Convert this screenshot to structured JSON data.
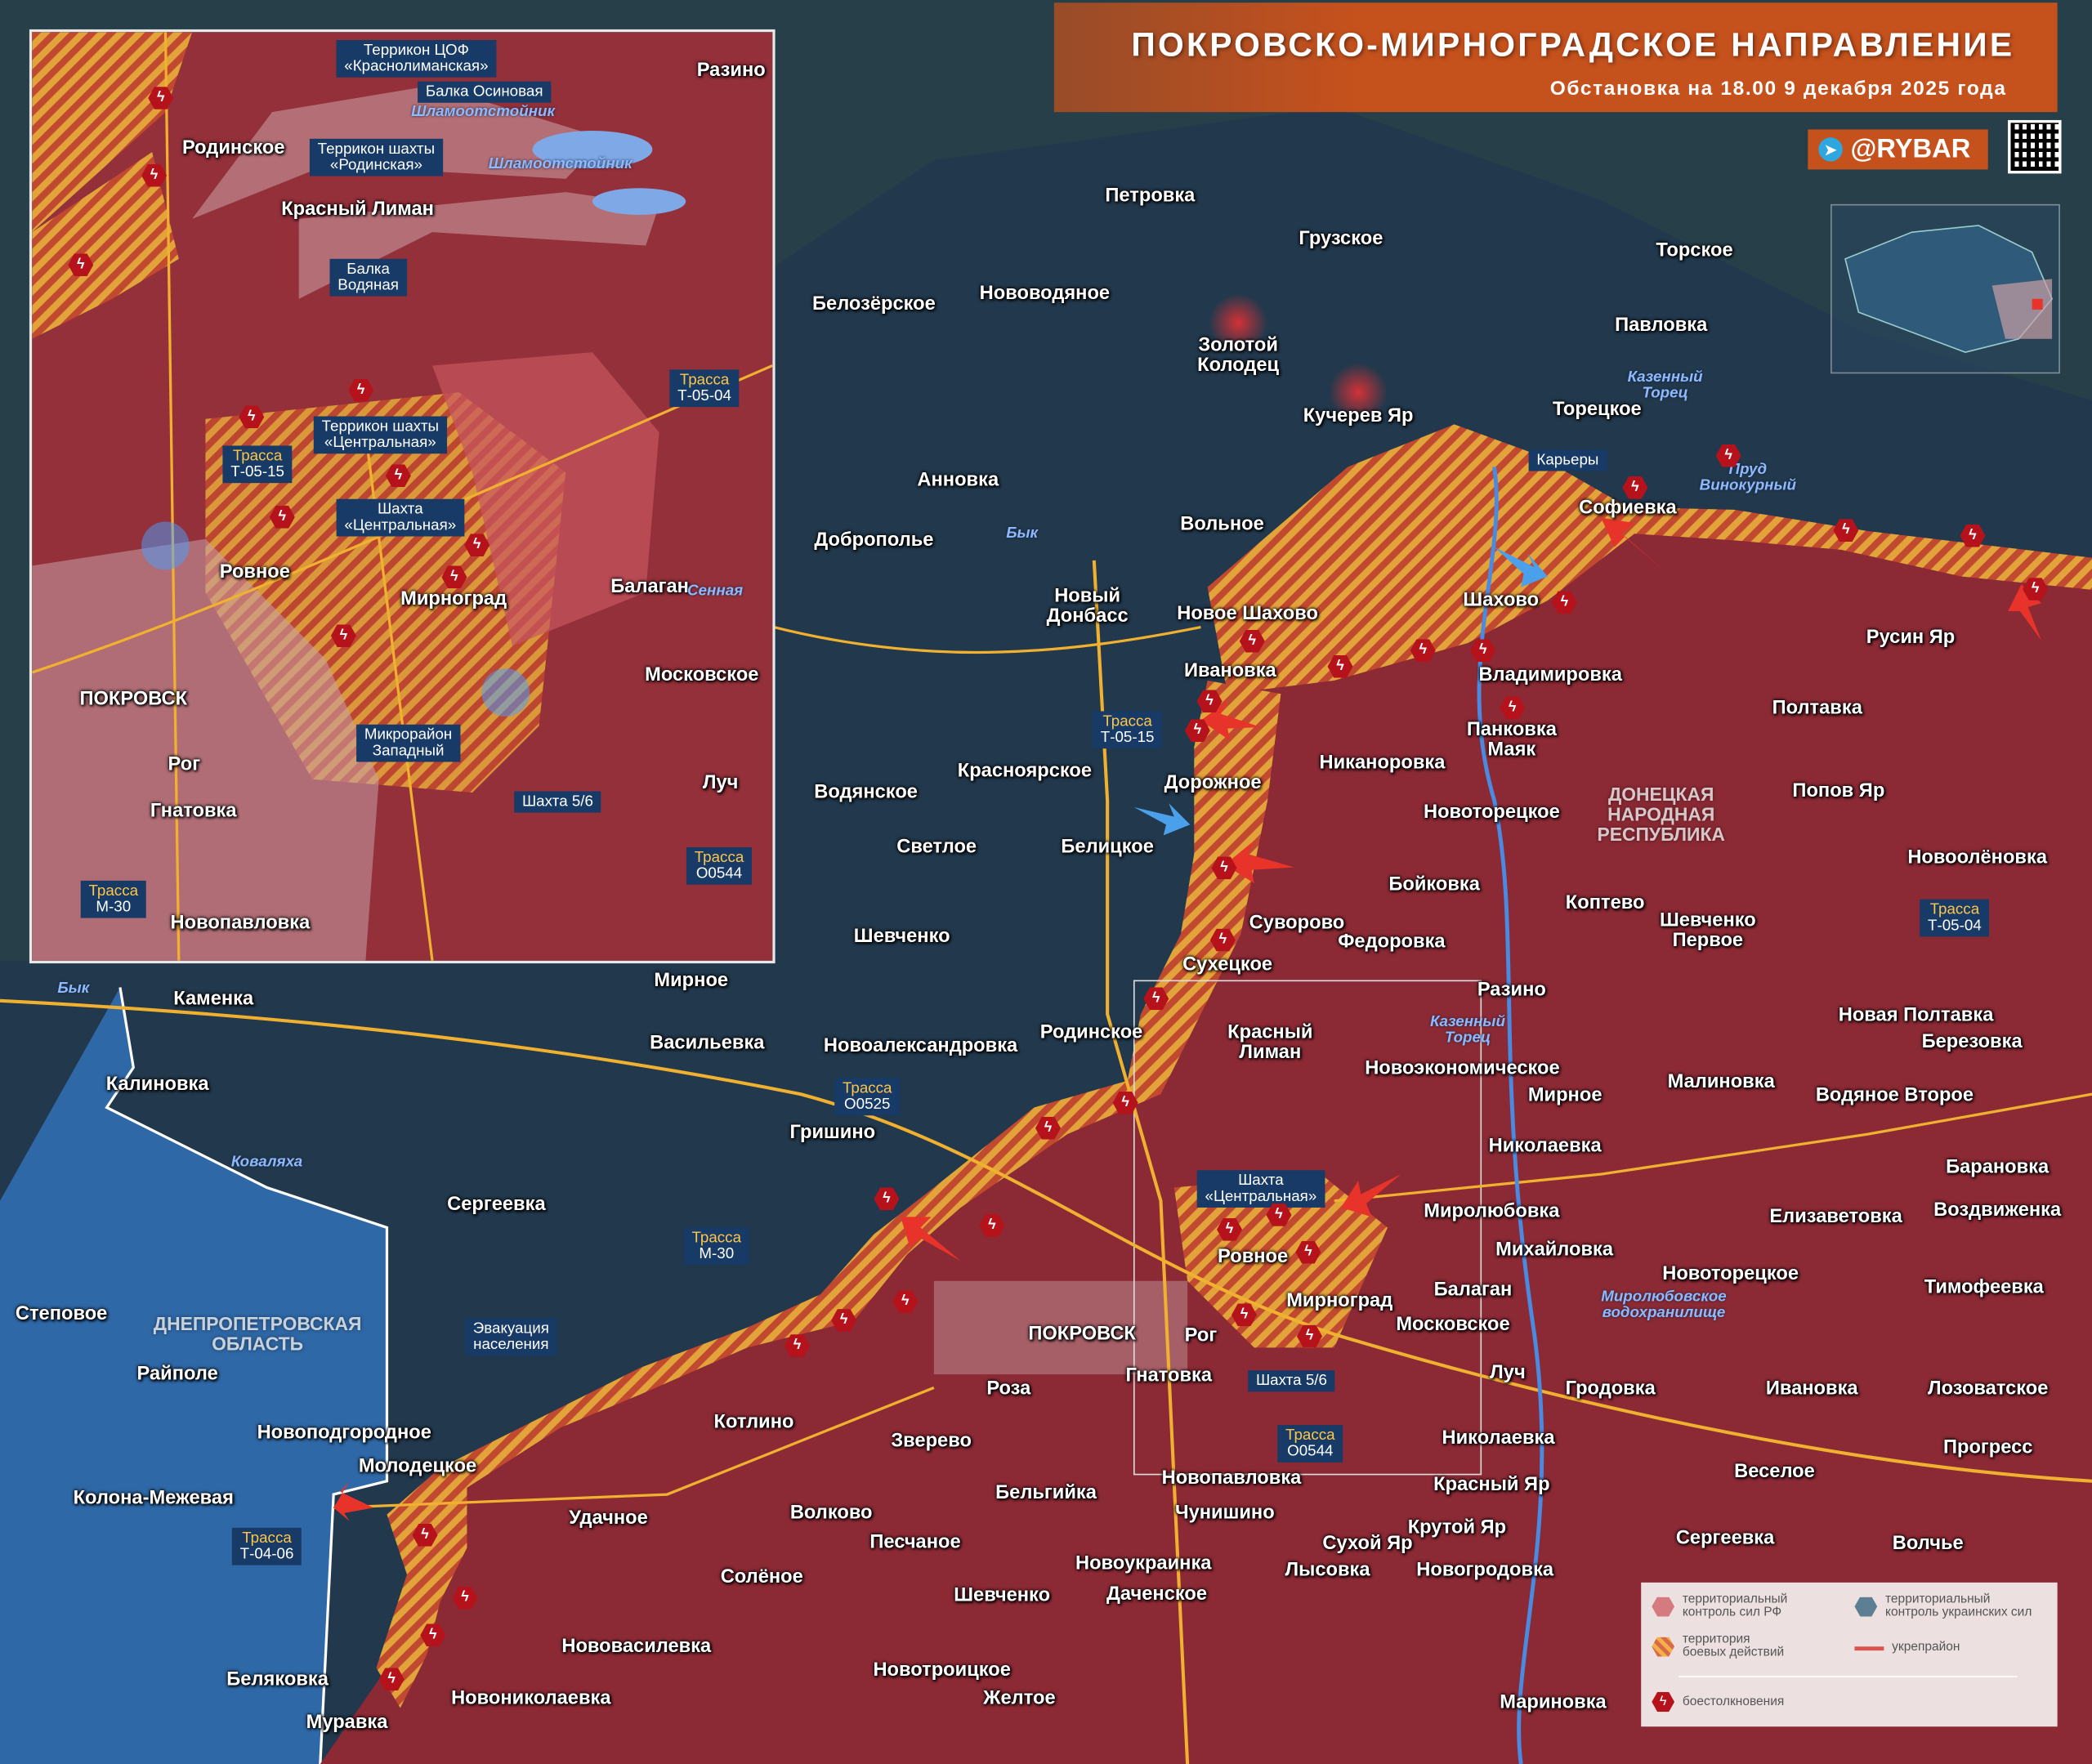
{
  "header": {
    "title": "ПОКРОВСКО-МИРНОГРАДСКОЕ НАПРАВЛЕНИЕ",
    "subtitle": "Обстановка на 18.00 9 декабря 2025 года",
    "brand": "@RYBAR",
    "brand_icon": "telegram-icon",
    "qr_icon": "qr-code-icon"
  },
  "colors": {
    "russian_control": "#8b2a35",
    "ukrainian_control": "#1f3a52",
    "combat_zone_stripe_a": "#e2a33a",
    "combat_zone_stripe_b": "#c0492f",
    "clash": "#b5121b",
    "header_bg": "#c5511d",
    "road": "#f0b030",
    "river": "#4a8ae0"
  },
  "legend": {
    "ru_control": "территориальный\nконтроль сил РФ",
    "ua_control": "территориальный\nконтроль украинских сил",
    "combat": "территория\nбоевых действий",
    "fortified": "укрепрайон",
    "clashes": "боестолкновения"
  },
  "main": {
    "settlements": [
      "Петровка",
      "Грузское",
      "Торское",
      "Белозёрское",
      "Нововодяное",
      "Золотой\nКолодец",
      "Павловка",
      "Кучерев Яр",
      "Торецкое",
      "Анновка",
      "Софиевка",
      "Доброполье",
      "Вольное",
      "Новый\nДонбасс",
      "Новое Шахово",
      "Шахово",
      "Русин Яр",
      "Ивановка",
      "Владимировка",
      "Панковка\nМаяк",
      "Полтавка",
      "Никаноровка",
      "Дорожное",
      "Красноярское",
      "Водянское",
      "Попов Яр",
      "Новоторецкое",
      "Светлое",
      "Белицкое",
      "Бойковка",
      "Новоолёновка",
      "Коптево",
      "Шевченко\nПервое",
      "Суворово",
      "Шевченко",
      "Федоровка",
      "Сухецкое",
      "Мирное",
      "Разино",
      "Каменка",
      "Новая Полтавка",
      "Родинское",
      "Красный\nЛиман",
      "Березовка",
      "Васильевка",
      "Новоалександровка",
      "Новоэкономическое",
      "Калиновка",
      "Мирное",
      "Малиновка",
      "Водяное Второе",
      "Гришино",
      "Николаевка",
      "Барановка",
      "Сергеевка",
      "Миролюбовка",
      "Елизаветовка",
      "Воздвиженка",
      "Михайловка",
      "Ровное",
      "Степовое",
      "Балаган",
      "Новоторецкое",
      "Тимофеевка",
      "Мирноград",
      "Московское",
      "ПОКРОВСК",
      "Рог",
      "Гнатовка",
      "Луч",
      "Райполе",
      "Роза",
      "Гродовка",
      "Ивановка",
      "Лозоватское",
      "Котлино",
      "Новоподгородное",
      "Зверево",
      "Николаевка",
      "Прогресс",
      "Молодецкое",
      "Новопавловка",
      "Красный Яр",
      "Веселое",
      "Колона-Межевая",
      "Бельгийка",
      "Удачное",
      "Волково",
      "Чунишино",
      "Крутой Яр",
      "Сухой Яр",
      "Сергеевка",
      "Песчаное",
      "Волчье",
      "Новоукраинка",
      "Лысовка",
      "Новогродовка",
      "Солёное",
      "Шевченко",
      "Даченское",
      "Беляковка",
      "Нововасилевка",
      "Новотроицкое",
      "Новониколаевка",
      "Желтое",
      "Мариновка",
      "Муравка"
    ],
    "regions": [
      "ДНЕПРОПЕТРОВСКАЯ\nОБЛАСТЬ",
      "ДОНЕЦКАЯ\nНАРОДНАЯ\nРЕСПУБЛИКА"
    ],
    "rivers": [
      "Бык",
      "Казенный\nТорец",
      "Пруд\nВинокурный",
      "Казенный\nТорец",
      "Коваляха",
      "Бык",
      "Миролюбовское\nводохранилище"
    ],
    "roads": [
      {
        "prefix": "Трасса",
        "name": "Т-05-15"
      },
      {
        "prefix": "Трасса",
        "name": "О0525"
      },
      {
        "prefix": "Трасса",
        "name": "М-30"
      },
      {
        "prefix": "Трасса",
        "name": "Т-04-06"
      },
      {
        "prefix": "Трасса",
        "name": "О0544"
      },
      {
        "prefix": "Трасса",
        "name": "Т-05-04"
      }
    ],
    "callouts": [
      "Карьеры",
      "Эвакуация\nнаселения",
      "Шахта\n«Центральная»",
      "Шахта 5/6"
    ]
  },
  "inset": {
    "settlements": [
      "Родинское",
      "Красный Лиман",
      "Разино",
      "Ровное",
      "Мирноград",
      "Балаган",
      "Московское",
      "ПОКРОВСК",
      "Рог",
      "Луч",
      "Гнатовка",
      "Новопавловка"
    ],
    "rivers": [
      "Шламоотстойник",
      "Шламоотстойник",
      "Сенная"
    ],
    "callouts": [
      "Террикон ЦОФ\n«Краснолиманская»",
      "Балка Осиновая",
      "Террикон шахты\n«Родинская»",
      "Балка\nВодяная",
      "Террикон шахты\n«Центральная»",
      "Шахта\n«Центральная»",
      "Микрорайон\nЗападный",
      "Шахта 5/6"
    ],
    "roads": [
      {
        "prefix": "Трасса",
        "name": "Т-05-04"
      },
      {
        "prefix": "Трасса",
        "name": "Т-05-15"
      },
      {
        "prefix": "Трасса",
        "name": "О0544"
      },
      {
        "prefix": "Трасса",
        "name": "М-30"
      }
    ]
  }
}
